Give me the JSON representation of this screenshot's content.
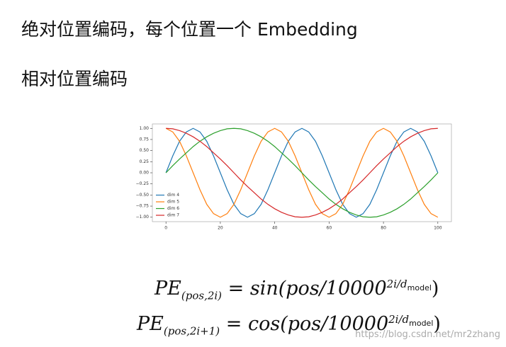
{
  "heading1": "绝对位置编码，每个位置一个 Embedding",
  "heading2": "相对位置编码",
  "chart_data": {
    "type": "line",
    "x": [
      0,
      2.5,
      5,
      7.5,
      10,
      12.5,
      15,
      17.5,
      20,
      22.5,
      25,
      27.5,
      30,
      32.5,
      35,
      37.5,
      40,
      42.5,
      45,
      47.5,
      50,
      52.5,
      55,
      57.5,
      60,
      62.5,
      65,
      67.5,
      70,
      72.5,
      75,
      77.5,
      80,
      82.5,
      85,
      87.5,
      90,
      92.5,
      95,
      97.5,
      100
    ],
    "series": [
      {
        "name": "dim 4",
        "color": "#1f77b4",
        "values": [
          0,
          0.38,
          0.71,
          0.92,
          1,
          0.92,
          0.71,
          0.38,
          0,
          -0.38,
          -0.71,
          -0.92,
          -1,
          -0.92,
          -0.71,
          -0.38,
          0,
          0.38,
          0.71,
          0.92,
          1,
          0.92,
          0.71,
          0.38,
          0,
          -0.38,
          -0.71,
          -0.92,
          -1,
          -0.92,
          -0.71,
          -0.38,
          0,
          0.38,
          0.71,
          0.92,
          1,
          0.92,
          0.71,
          0.38,
          0
        ]
      },
      {
        "name": "dim 5",
        "color": "#ff7f0e",
        "values": [
          1,
          0.92,
          0.71,
          0.38,
          0,
          -0.38,
          -0.71,
          -0.92,
          -1,
          -0.92,
          -0.71,
          -0.38,
          0,
          0.38,
          0.71,
          0.92,
          1,
          0.92,
          0.71,
          0.38,
          0,
          -0.38,
          -0.71,
          -0.92,
          -1,
          -0.92,
          -0.71,
          -0.38,
          0,
          0.38,
          0.71,
          0.92,
          1,
          0.92,
          0.71,
          0.38,
          0,
          -0.38,
          -0.71,
          -0.92,
          -1
        ]
      },
      {
        "name": "dim 6",
        "color": "#2ca02c",
        "values": [
          0,
          0.16,
          0.31,
          0.45,
          0.59,
          0.71,
          0.81,
          0.89,
          0.95,
          0.99,
          1,
          0.99,
          0.95,
          0.89,
          0.81,
          0.71,
          0.59,
          0.45,
          0.31,
          0.16,
          0,
          -0.16,
          -0.31,
          -0.45,
          -0.59,
          -0.71,
          -0.81,
          -0.89,
          -0.95,
          -0.99,
          -1,
          -0.99,
          -0.95,
          -0.89,
          -0.81,
          -0.71,
          -0.59,
          -0.45,
          -0.31,
          -0.16,
          0
        ]
      },
      {
        "name": "dim 7",
        "color": "#d62728",
        "values": [
          1,
          0.99,
          0.95,
          0.89,
          0.81,
          0.71,
          0.59,
          0.45,
          0.31,
          0.16,
          0,
          -0.16,
          -0.31,
          -0.45,
          -0.59,
          -0.71,
          -0.81,
          -0.89,
          -0.95,
          -0.99,
          -1,
          -0.99,
          -0.95,
          -0.89,
          -0.81,
          -0.71,
          -0.59,
          -0.45,
          -0.31,
          -0.16,
          0,
          0.16,
          0.31,
          0.45,
          0.59,
          0.71,
          0.81,
          0.89,
          0.95,
          0.99,
          1
        ]
      }
    ],
    "xlim": [
      -5,
      105
    ],
    "ylim": [
      -1.1,
      1.1
    ],
    "xticks": [
      0,
      20,
      40,
      60,
      80,
      100
    ],
    "yticks": [
      {
        "value": 1,
        "label": "1.00"
      },
      {
        "value": 0.75,
        "label": "0.75"
      },
      {
        "value": 0.5,
        "label": "0.50"
      },
      {
        "value": 0.25,
        "label": "0.25"
      },
      {
        "value": 0,
        "label": "0.00"
      },
      {
        "value": -0.25,
        "label": "−0.25"
      },
      {
        "value": -0.5,
        "label": "−0.50"
      },
      {
        "value": -0.75,
        "label": "−0.75"
      },
      {
        "value": -1,
        "label": "−1.00"
      }
    ],
    "legend": "lower left"
  },
  "formulas": [
    {
      "name": "PE",
      "subscript": "(pos,2i)",
      "equals": "=",
      "rhs": "sin(pos/10000",
      "exponent": "2i/d",
      "exponent_subscript": "model",
      "end": ")"
    },
    {
      "name": "PE",
      "subscript": "(pos,2i+1)",
      "equals": "=",
      "rhs": "cos(pos/10000",
      "exponent": "2i/d",
      "exponent_subscript": "model",
      "end": ")"
    }
  ],
  "watermark": "https://blog.csdn.net/mr2zhang"
}
